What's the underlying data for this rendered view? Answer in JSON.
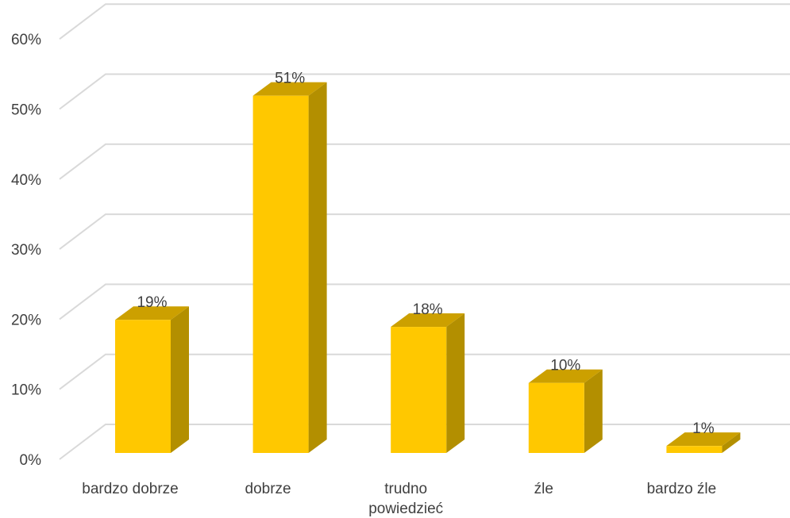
{
  "chart_data": {
    "type": "bar",
    "categories": [
      "bardzo dobrze",
      "dobrze",
      "trudno powiedzieć",
      "źle",
      "bardzo źle"
    ],
    "category_lines": [
      [
        "bardzo dobrze"
      ],
      [
        "dobrze"
      ],
      [
        "trudno",
        "powiedzieć"
      ],
      [
        "źle"
      ],
      [
        "bardzo źle"
      ]
    ],
    "values": [
      19,
      51,
      18,
      10,
      1
    ],
    "data_labels": [
      "19%",
      "51%",
      "18%",
      "10%",
      "1%"
    ],
    "yticks": [
      0,
      10,
      20,
      30,
      40,
      50,
      60
    ],
    "ytick_labels": [
      "0%",
      "10%",
      "20%",
      "30%",
      "40%",
      "50%",
      "60%"
    ],
    "ylim": [
      0,
      60
    ],
    "title": "",
    "xlabel": "",
    "ylabel": "",
    "grid": true,
    "style": "3d-column",
    "colors": {
      "bar_front": "#FFC800",
      "bar_side": "#B38F00",
      "bar_top": "#CCA000",
      "grid": "#D9D9D9",
      "text": "#404040"
    }
  }
}
